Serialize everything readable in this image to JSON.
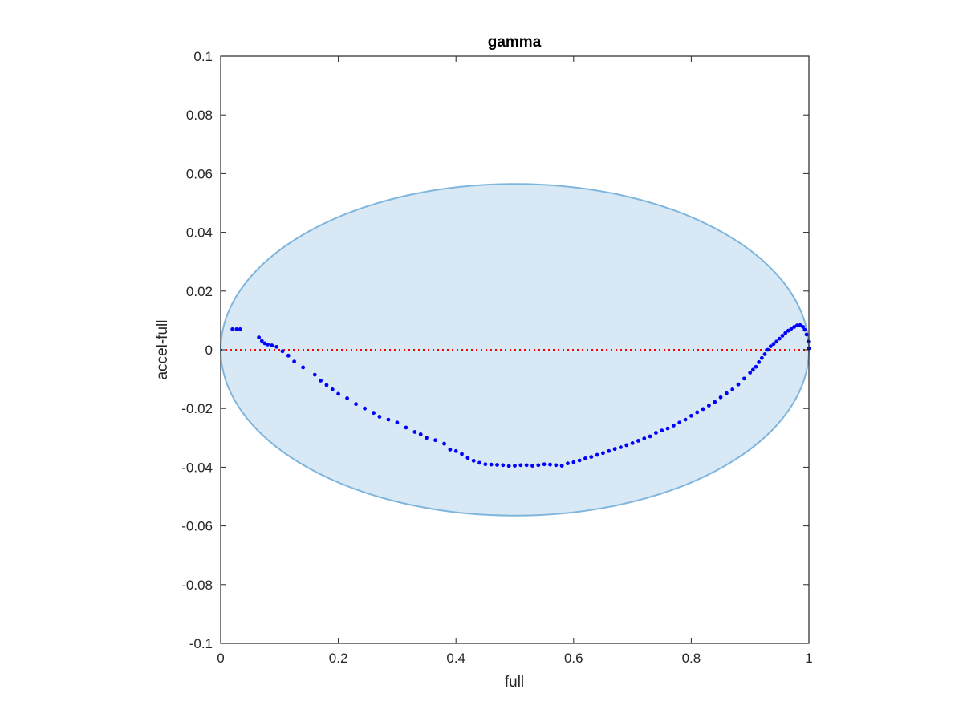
{
  "chart_data": {
    "type": "scatter",
    "title": "gamma",
    "xlabel": "full",
    "ylabel": "accel-full",
    "xlim": [
      0,
      1
    ],
    "ylim": [
      -0.1,
      0.1
    ],
    "grid": false,
    "legend": "none",
    "x_ticks": [
      "0",
      "0.2",
      "0.4",
      "0.6",
      "0.8",
      "1"
    ],
    "y_ticks": [
      "0.1",
      "0.08",
      "0.06",
      "0.04",
      "0.02",
      "0",
      "-0.02",
      "-0.04",
      "-0.06",
      "-0.08",
      "-0.1"
    ],
    "x_tick_values": [
      0,
      0.2,
      0.4,
      0.6,
      0.8,
      1
    ],
    "y_tick_values": [
      0.1,
      0.08,
      0.06,
      0.04,
      0.02,
      0,
      -0.02,
      -0.04,
      -0.06,
      -0.08,
      -0.1
    ],
    "reference_line": {
      "y": 0,
      "style": "dotted",
      "color": "#ff0000"
    },
    "region": {
      "shape": "ellipse",
      "center": [
        0.5,
        0
      ],
      "radius_x": 0.5,
      "radius_y": 0.0565,
      "fill": "#d8e8f5",
      "stroke": "#7fb6dd"
    },
    "series": [
      {
        "color": "#0000ff",
        "x": [
          0.02,
          0.027,
          0.033,
          0.065,
          0.07,
          0.075,
          0.08,
          0.087,
          0.095,
          0.105,
          0.115,
          0.125,
          0.14,
          0.16,
          0.17,
          0.18,
          0.19,
          0.2,
          0.215,
          0.23,
          0.245,
          0.26,
          0.27,
          0.285,
          0.3,
          0.315,
          0.33,
          0.34,
          0.35,
          0.365,
          0.38,
          0.39,
          0.4,
          0.41,
          0.42,
          0.43,
          0.44,
          0.45,
          0.46,
          0.47,
          0.48,
          0.49,
          0.5,
          0.51,
          0.52,
          0.53,
          0.54,
          0.55,
          0.56,
          0.57,
          0.58,
          0.59,
          0.6,
          0.61,
          0.62,
          0.63,
          0.64,
          0.65,
          0.66,
          0.67,
          0.68,
          0.69,
          0.7,
          0.71,
          0.72,
          0.73,
          0.74,
          0.75,
          0.76,
          0.77,
          0.78,
          0.79,
          0.8,
          0.81,
          0.82,
          0.83,
          0.84,
          0.85,
          0.86,
          0.87,
          0.88,
          0.89,
          0.9,
          0.905,
          0.91,
          0.915,
          0.92,
          0.925,
          0.93,
          0.935,
          0.94,
          0.945,
          0.95,
          0.955,
          0.96,
          0.965,
          0.97,
          0.975,
          0.98,
          0.985,
          0.99,
          0.993,
          0.996,
          0.999,
          1.0
        ],
        "y": [
          0.007,
          0.007,
          0.007,
          0.0042,
          0.003,
          0.0022,
          0.0018,
          0.0015,
          0.001,
          -0.0005,
          -0.002,
          -0.004,
          -0.006,
          -0.0085,
          -0.0105,
          -0.012,
          -0.0135,
          -0.015,
          -0.0165,
          -0.0185,
          -0.02,
          -0.0215,
          -0.0228,
          -0.0238,
          -0.0248,
          -0.0265,
          -0.028,
          -0.0288,
          -0.03,
          -0.0308,
          -0.032,
          -0.034,
          -0.0345,
          -0.0355,
          -0.0368,
          -0.0378,
          -0.0385,
          -0.039,
          -0.0391,
          -0.0392,
          -0.0393,
          -0.0396,
          -0.0395,
          -0.0393,
          -0.0393,
          -0.0395,
          -0.0393,
          -0.039,
          -0.0391,
          -0.0393,
          -0.0395,
          -0.0387,
          -0.0383,
          -0.0377,
          -0.037,
          -0.0365,
          -0.0358,
          -0.0352,
          -0.0345,
          -0.0338,
          -0.0332,
          -0.0325,
          -0.0318,
          -0.031,
          -0.0302,
          -0.0295,
          -0.0283,
          -0.0275,
          -0.0268,
          -0.0258,
          -0.0248,
          -0.0238,
          -0.0225,
          -0.0213,
          -0.0202,
          -0.019,
          -0.0178,
          -0.0162,
          -0.0148,
          -0.0135,
          -0.0118,
          -0.0098,
          -0.0078,
          -0.0068,
          -0.0058,
          -0.0042,
          -0.0028,
          -0.0015,
          0.0,
          0.0012,
          0.002,
          0.0028,
          0.0038,
          0.0048,
          0.0057,
          0.0065,
          0.0072,
          0.0078,
          0.0083,
          0.0084,
          0.0078,
          0.0068,
          0.0052,
          0.0028,
          0.0005
        ]
      }
    ]
  }
}
